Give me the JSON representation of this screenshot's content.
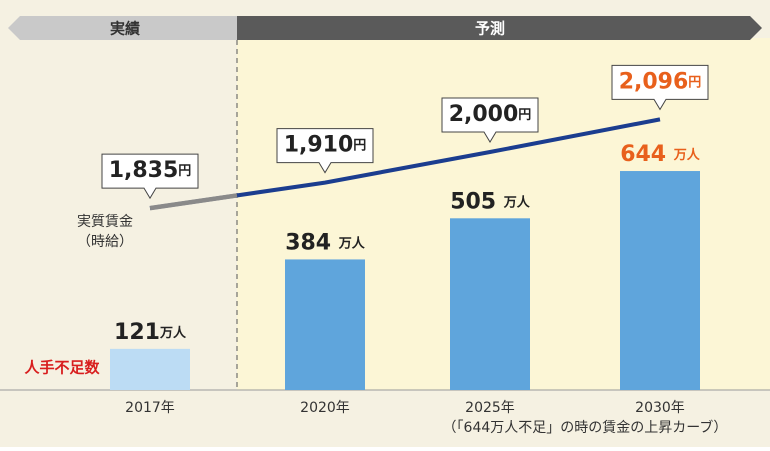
{
  "chart_data": {
    "type": "bar",
    "header": {
      "actual": "実績",
      "forecast": "予測"
    },
    "categories": [
      "2017年",
      "2020年",
      "2025年",
      "2030年"
    ],
    "note": "（「644万人不足」の時の賃金の上昇カーブ）",
    "ylim": [
      0,
      1000
    ],
    "y2lim": [
      1300,
      2300
    ],
    "series": [
      {
        "name": "人手不足数",
        "name_color": "#d81e1e",
        "colors": [
          "#bcdcf4",
          "#5fa5dc",
          "#5fa5dc",
          "#5fa5dc"
        ],
        "values": [
          121,
          384,
          505,
          644
        ],
        "value_labels": [
          "121万人",
          "384 万人",
          "505 万人",
          "644 万人"
        ],
        "label_colors": [
          "#222222",
          "#222222",
          "#222222",
          "#e8601c"
        ]
      },
      {
        "name": "実質賃金（時給）",
        "type": "line",
        "axis": "y2",
        "color": "#1b3d8f",
        "actual_color": "#8a8a8a",
        "values": [
          1835,
          1910,
          2000,
          2096
        ],
        "value_labels": [
          "1,835円",
          "1,910円",
          "2,000円",
          "2,096円"
        ],
        "label_colors": [
          "#222222",
          "#222222",
          "#222222",
          "#e8601c"
        ]
      }
    ]
  }
}
